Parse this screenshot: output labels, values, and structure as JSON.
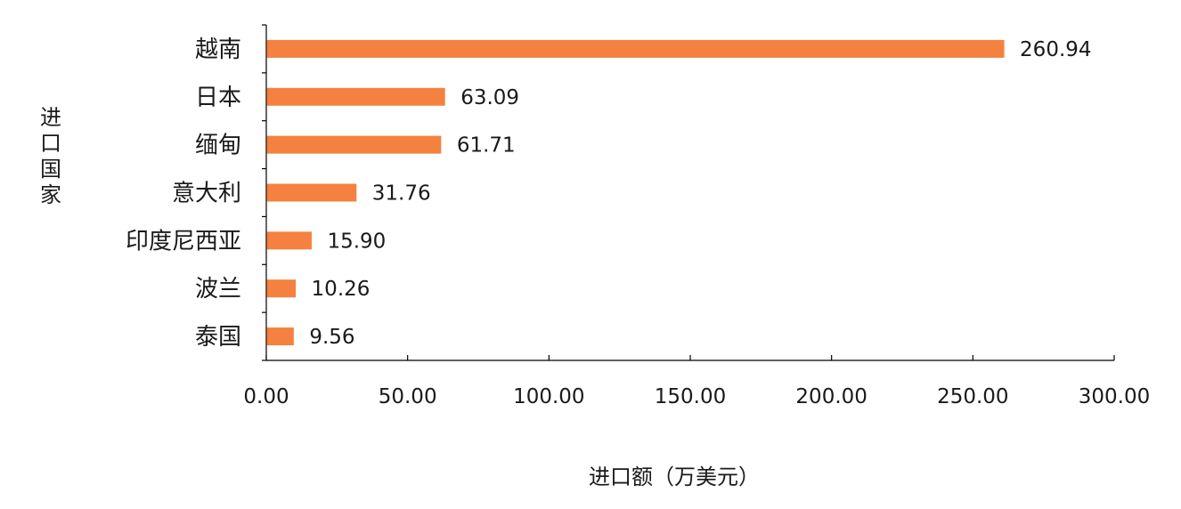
{
  "chart_data": {
    "type": "bar",
    "orientation": "horizontal",
    "categories": [
      "越南",
      "日本",
      "缅甸",
      "意大利",
      "印度尼西亚",
      "波兰",
      "泰国"
    ],
    "values": [
      260.94,
      63.09,
      61.71,
      31.76,
      15.9,
      10.26,
      9.56
    ],
    "data_labels": [
      "260.94",
      "63.09",
      "61.71",
      "31.76",
      "15.90",
      "10.26",
      "9.56"
    ],
    "xlim": [
      0,
      300
    ],
    "x_ticks": [
      "0.00",
      "50.00",
      "100.00",
      "150.00",
      "200.00",
      "250.00",
      "300.00"
    ],
    "xlabel": "进口额（万美元）",
    "ylabel": "进口国家",
    "bar_color": "#F4813F",
    "axis_color": "#000000",
    "grid": false,
    "legend": "none"
  }
}
